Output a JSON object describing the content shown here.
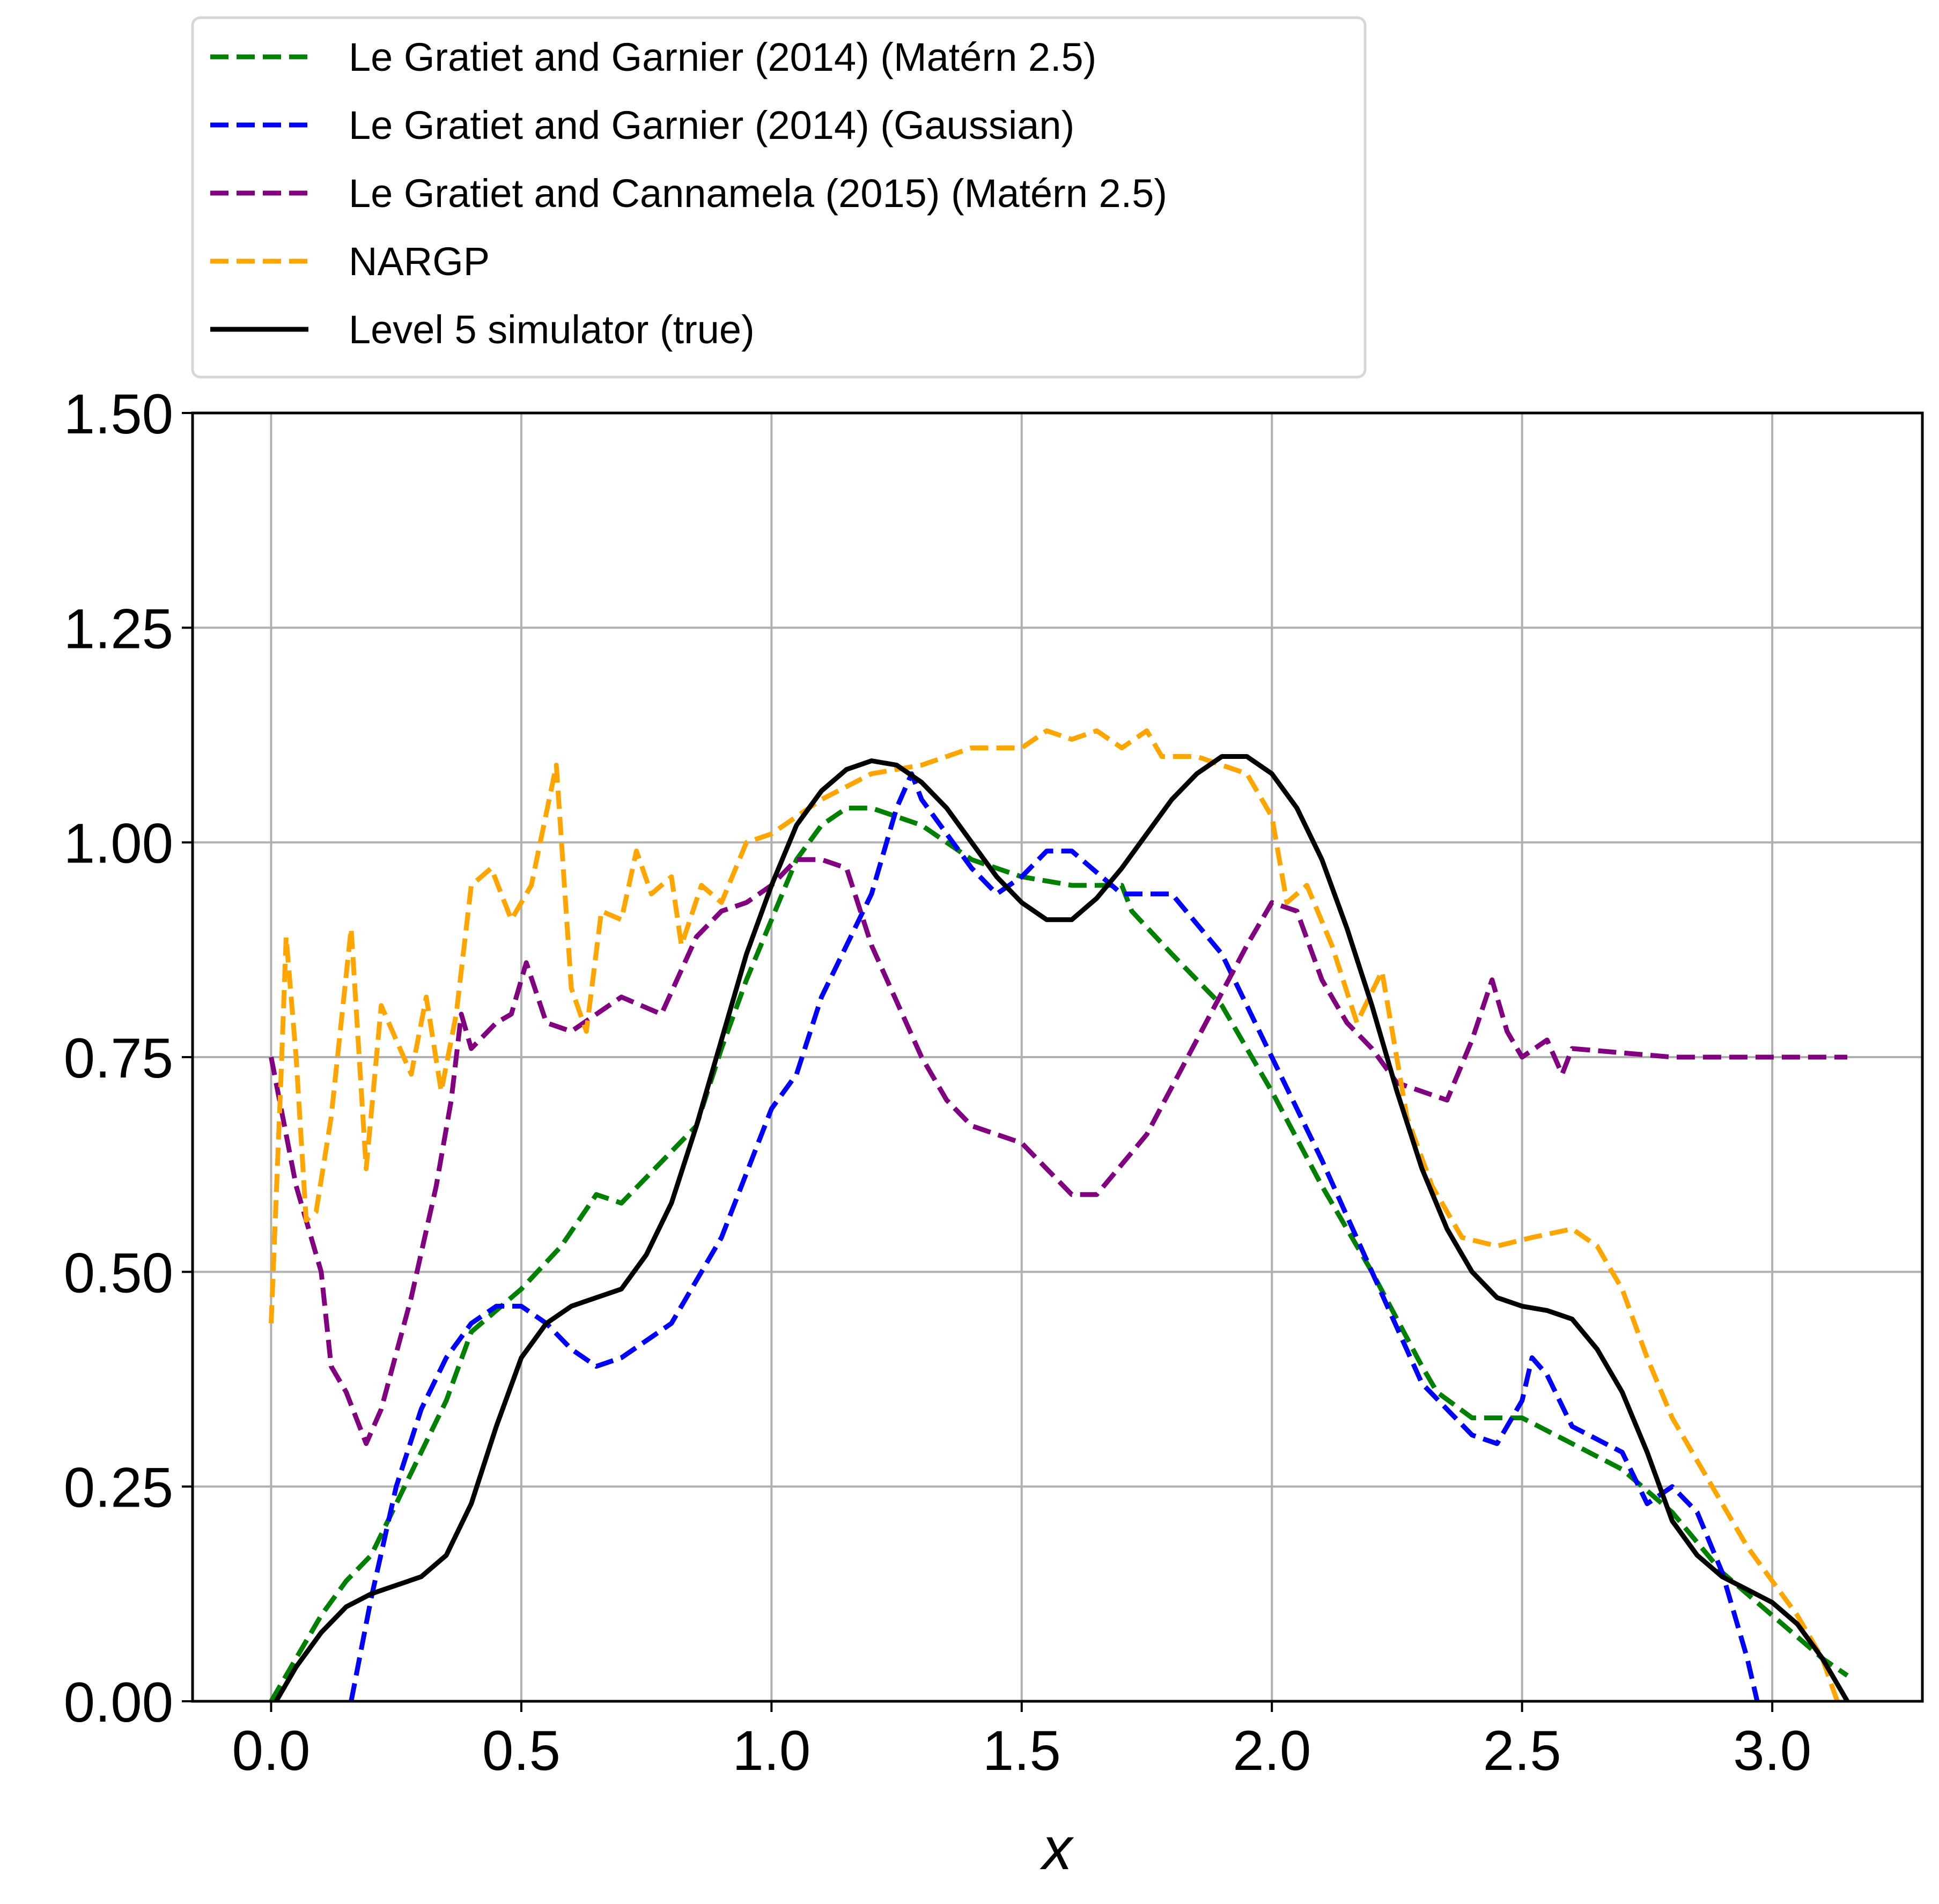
{
  "chart_data": {
    "type": "line",
    "xlabel": "x",
    "ylabel": "",
    "title": "",
    "xlim": [
      -0.157,
      3.3
    ],
    "ylim": [
      0,
      1.5
    ],
    "x_ticks": [
      0.0,
      0.5,
      1.0,
      1.5,
      2.0,
      2.5,
      3.0
    ],
    "x_tick_labels": [
      "0.0",
      "0.5",
      "1.0",
      "1.5",
      "2.0",
      "2.5",
      "3.0"
    ],
    "y_ticks": [
      0,
      0.25,
      0.5,
      0.75,
      1.0,
      1.25,
      1.5
    ],
    "y_tick_labels": [
      "0.00",
      "0.25",
      "0.50",
      "0.75",
      "1.00",
      "1.25",
      "1.50"
    ],
    "grid": true,
    "legend_position": "above plot, top-left",
    "series": [
      {
        "name": "Le Gratiet and Garnier (2014) (Matérn 2.5)",
        "color": "#008000",
        "style": "dashed",
        "points": [
          [
            0.0,
            0.0
          ],
          [
            0.05,
            0.05
          ],
          [
            0.1,
            0.1
          ],
          [
            0.15,
            0.14
          ],
          [
            0.2,
            0.17
          ],
          [
            0.25,
            0.23
          ],
          [
            0.3,
            0.29
          ],
          [
            0.35,
            0.35
          ],
          [
            0.4,
            0.43
          ],
          [
            0.5,
            0.48
          ],
          [
            0.58,
            0.53
          ],
          [
            0.65,
            0.59
          ],
          [
            0.7,
            0.58
          ],
          [
            0.8,
            0.64
          ],
          [
            0.85,
            0.67
          ],
          [
            0.9,
            0.76
          ],
          [
            0.95,
            0.84
          ],
          [
            1.0,
            0.91
          ],
          [
            1.05,
            0.98
          ],
          [
            1.1,
            1.02
          ],
          [
            1.15,
            1.04
          ],
          [
            1.2,
            1.04
          ],
          [
            1.3,
            1.02
          ],
          [
            1.4,
            0.98
          ],
          [
            1.5,
            0.96
          ],
          [
            1.6,
            0.95
          ],
          [
            1.7,
            0.95
          ],
          [
            1.72,
            0.92
          ],
          [
            1.8,
            0.87
          ],
          [
            1.9,
            0.81
          ],
          [
            2.0,
            0.71
          ],
          [
            2.1,
            0.6
          ],
          [
            2.2,
            0.5
          ],
          [
            2.3,
            0.39
          ],
          [
            2.33,
            0.36
          ],
          [
            2.4,
            0.33
          ],
          [
            2.5,
            0.33
          ],
          [
            2.6,
            0.3
          ],
          [
            2.7,
            0.27
          ],
          [
            2.8,
            0.22
          ],
          [
            2.9,
            0.15
          ],
          [
            3.0,
            0.1
          ],
          [
            3.1,
            0.05
          ],
          [
            3.15,
            0.03
          ]
        ]
      },
      {
        "name": "Le Gratiet and Garnier (2014) (Gaussian)",
        "color": "#0000ff",
        "style": "dashed",
        "points": [
          [
            0.16,
            0.0
          ],
          [
            0.2,
            0.12
          ],
          [
            0.25,
            0.25
          ],
          [
            0.3,
            0.34
          ],
          [
            0.35,
            0.4
          ],
          [
            0.4,
            0.44
          ],
          [
            0.45,
            0.46
          ],
          [
            0.5,
            0.46
          ],
          [
            0.55,
            0.44
          ],
          [
            0.6,
            0.41
          ],
          [
            0.65,
            0.39
          ],
          [
            0.7,
            0.4
          ],
          [
            0.8,
            0.44
          ],
          [
            0.9,
            0.54
          ],
          [
            1.0,
            0.69
          ],
          [
            1.05,
            0.73
          ],
          [
            1.1,
            0.82
          ],
          [
            1.2,
            0.94
          ],
          [
            1.25,
            1.04
          ],
          [
            1.28,
            1.08
          ],
          [
            1.3,
            1.05
          ],
          [
            1.4,
            0.97
          ],
          [
            1.45,
            0.94
          ],
          [
            1.5,
            0.96
          ],
          [
            1.55,
            0.99
          ],
          [
            1.6,
            0.99
          ],
          [
            1.7,
            0.94
          ],
          [
            1.8,
            0.94
          ],
          [
            1.9,
            0.87
          ],
          [
            2.0,
            0.75
          ],
          [
            2.1,
            0.63
          ],
          [
            2.2,
            0.5
          ],
          [
            2.3,
            0.37
          ],
          [
            2.4,
            0.31
          ],
          [
            2.45,
            0.3
          ],
          [
            2.5,
            0.35
          ],
          [
            2.52,
            0.4
          ],
          [
            2.55,
            0.38
          ],
          [
            2.6,
            0.32
          ],
          [
            2.7,
            0.29
          ],
          [
            2.75,
            0.23
          ],
          [
            2.8,
            0.25
          ],
          [
            2.85,
            0.22
          ],
          [
            2.9,
            0.15
          ],
          [
            2.95,
            0.05
          ],
          [
            2.97,
            0.0
          ]
        ]
      },
      {
        "name": "Le Gratiet and Cannamela (2015) (Matérn 2.5)",
        "color": "#800080",
        "style": "dashed",
        "points": [
          [
            0.0,
            0.75
          ],
          [
            0.05,
            0.6
          ],
          [
            0.1,
            0.5
          ],
          [
            0.12,
            0.39
          ],
          [
            0.15,
            0.36
          ],
          [
            0.19,
            0.3
          ],
          [
            0.22,
            0.34
          ],
          [
            0.28,
            0.47
          ],
          [
            0.33,
            0.6
          ],
          [
            0.36,
            0.7
          ],
          [
            0.38,
            0.8
          ],
          [
            0.4,
            0.76
          ],
          [
            0.45,
            0.79
          ],
          [
            0.48,
            0.8
          ],
          [
            0.51,
            0.86
          ],
          [
            0.55,
            0.79
          ],
          [
            0.6,
            0.78
          ],
          [
            0.65,
            0.8
          ],
          [
            0.7,
            0.82
          ],
          [
            0.78,
            0.8
          ],
          [
            0.85,
            0.89
          ],
          [
            0.9,
            0.92
          ],
          [
            0.95,
            0.93
          ],
          [
            1.0,
            0.95
          ],
          [
            1.05,
            0.98
          ],
          [
            1.1,
            0.98
          ],
          [
            1.15,
            0.97
          ],
          [
            1.2,
            0.88
          ],
          [
            1.3,
            0.75
          ],
          [
            1.35,
            0.7
          ],
          [
            1.4,
            0.67
          ],
          [
            1.45,
            0.66
          ],
          [
            1.5,
            0.65
          ],
          [
            1.55,
            0.62
          ],
          [
            1.6,
            0.59
          ],
          [
            1.65,
            0.59
          ],
          [
            1.75,
            0.66
          ],
          [
            1.85,
            0.77
          ],
          [
            1.95,
            0.88
          ],
          [
            2.0,
            0.93
          ],
          [
            2.05,
            0.92
          ],
          [
            2.1,
            0.84
          ],
          [
            2.15,
            0.79
          ],
          [
            2.2,
            0.76
          ],
          [
            2.25,
            0.72
          ],
          [
            2.35,
            0.7
          ],
          [
            2.4,
            0.77
          ],
          [
            2.44,
            0.84
          ],
          [
            2.47,
            0.78
          ],
          [
            2.5,
            0.75
          ],
          [
            2.55,
            0.77
          ],
          [
            2.58,
            0.73
          ],
          [
            2.6,
            0.76
          ],
          [
            2.8,
            0.75
          ],
          [
            3.15,
            0.75
          ]
        ]
      },
      {
        "name": "NARGP",
        "color": "#ffa500",
        "style": "dashed",
        "points": [
          [
            0.0,
            0.44
          ],
          [
            0.02,
            0.73
          ],
          [
            0.03,
            0.89
          ],
          [
            0.05,
            0.75
          ],
          [
            0.07,
            0.56
          ],
          [
            0.09,
            0.57
          ],
          [
            0.12,
            0.68
          ],
          [
            0.16,
            0.9
          ],
          [
            0.19,
            0.62
          ],
          [
            0.22,
            0.81
          ],
          [
            0.25,
            0.77
          ],
          [
            0.28,
            0.73
          ],
          [
            0.31,
            0.82
          ],
          [
            0.34,
            0.71
          ],
          [
            0.37,
            0.8
          ],
          [
            0.4,
            0.95
          ],
          [
            0.44,
            0.97
          ],
          [
            0.48,
            0.91
          ],
          [
            0.52,
            0.95
          ],
          [
            0.57,
            1.09
          ],
          [
            0.6,
            0.83
          ],
          [
            0.63,
            0.78
          ],
          [
            0.66,
            0.92
          ],
          [
            0.7,
            0.91
          ],
          [
            0.73,
            0.99
          ],
          [
            0.76,
            0.94
          ],
          [
            0.8,
            0.96
          ],
          [
            0.82,
            0.88
          ],
          [
            0.86,
            0.95
          ],
          [
            0.9,
            0.93
          ],
          [
            0.95,
            1.0
          ],
          [
            1.0,
            1.01
          ],
          [
            1.1,
            1.05
          ],
          [
            1.2,
            1.08
          ],
          [
            1.3,
            1.09
          ],
          [
            1.4,
            1.11
          ],
          [
            1.5,
            1.11
          ],
          [
            1.55,
            1.13
          ],
          [
            1.6,
            1.12
          ],
          [
            1.65,
            1.13
          ],
          [
            1.7,
            1.11
          ],
          [
            1.75,
            1.13
          ],
          [
            1.78,
            1.1
          ],
          [
            1.85,
            1.1
          ],
          [
            1.95,
            1.08
          ],
          [
            2.0,
            1.03
          ],
          [
            2.03,
            0.93
          ],
          [
            2.07,
            0.95
          ],
          [
            2.12,
            0.88
          ],
          [
            2.17,
            0.79
          ],
          [
            2.22,
            0.85
          ],
          [
            2.27,
            0.68
          ],
          [
            2.32,
            0.6
          ],
          [
            2.38,
            0.54
          ],
          [
            2.45,
            0.53
          ],
          [
            2.52,
            0.54
          ],
          [
            2.6,
            0.55
          ],
          [
            2.65,
            0.53
          ],
          [
            2.7,
            0.48
          ],
          [
            2.75,
            0.4
          ],
          [
            2.8,
            0.33
          ],
          [
            2.88,
            0.25
          ],
          [
            2.95,
            0.18
          ],
          [
            3.05,
            0.1
          ],
          [
            3.1,
            0.05
          ],
          [
            3.13,
            0.0
          ]
        ]
      },
      {
        "name": "Level 5 simulator (true)",
        "color": "#000000",
        "style": "solid",
        "points": [
          [
            0.01,
            0.0
          ],
          [
            0.05,
            0.04
          ],
          [
            0.1,
            0.08
          ],
          [
            0.15,
            0.11
          ],
          [
            0.2,
            0.125
          ],
          [
            0.25,
            0.135
          ],
          [
            0.3,
            0.145
          ],
          [
            0.35,
            0.17
          ],
          [
            0.4,
            0.23
          ],
          [
            0.45,
            0.32
          ],
          [
            0.5,
            0.4
          ],
          [
            0.55,
            0.44
          ],
          [
            0.6,
            0.46
          ],
          [
            0.65,
            0.47
          ],
          [
            0.7,
            0.48
          ],
          [
            0.75,
            0.52
          ],
          [
            0.8,
            0.58
          ],
          [
            0.85,
            0.67
          ],
          [
            0.9,
            0.77
          ],
          [
            0.95,
            0.87
          ],
          [
            1.0,
            0.95
          ],
          [
            1.05,
            1.02
          ],
          [
            1.1,
            1.06
          ],
          [
            1.15,
            1.085
          ],
          [
            1.2,
            1.095
          ],
          [
            1.25,
            1.09
          ],
          [
            1.3,
            1.07
          ],
          [
            1.35,
            1.04
          ],
          [
            1.4,
            1.0
          ],
          [
            1.45,
            0.96
          ],
          [
            1.5,
            0.93
          ],
          [
            1.55,
            0.91
          ],
          [
            1.6,
            0.91
          ],
          [
            1.65,
            0.935
          ],
          [
            1.7,
            0.97
          ],
          [
            1.75,
            1.01
          ],
          [
            1.8,
            1.05
          ],
          [
            1.85,
            1.08
          ],
          [
            1.9,
            1.1
          ],
          [
            1.95,
            1.1
          ],
          [
            2.0,
            1.08
          ],
          [
            2.05,
            1.04
          ],
          [
            2.1,
            0.98
          ],
          [
            2.15,
            0.9
          ],
          [
            2.2,
            0.81
          ],
          [
            2.25,
            0.71
          ],
          [
            2.3,
            0.62
          ],
          [
            2.35,
            0.55
          ],
          [
            2.4,
            0.5
          ],
          [
            2.45,
            0.47
          ],
          [
            2.5,
            0.46
          ],
          [
            2.55,
            0.455
          ],
          [
            2.6,
            0.445
          ],
          [
            2.65,
            0.41
          ],
          [
            2.7,
            0.36
          ],
          [
            2.75,
            0.29
          ],
          [
            2.8,
            0.21
          ],
          [
            2.85,
            0.17
          ],
          [
            2.9,
            0.145
          ],
          [
            2.95,
            0.13
          ],
          [
            3.0,
            0.115
          ],
          [
            3.05,
            0.09
          ],
          [
            3.1,
            0.05
          ],
          [
            3.15,
            0.0
          ]
        ]
      }
    ]
  }
}
